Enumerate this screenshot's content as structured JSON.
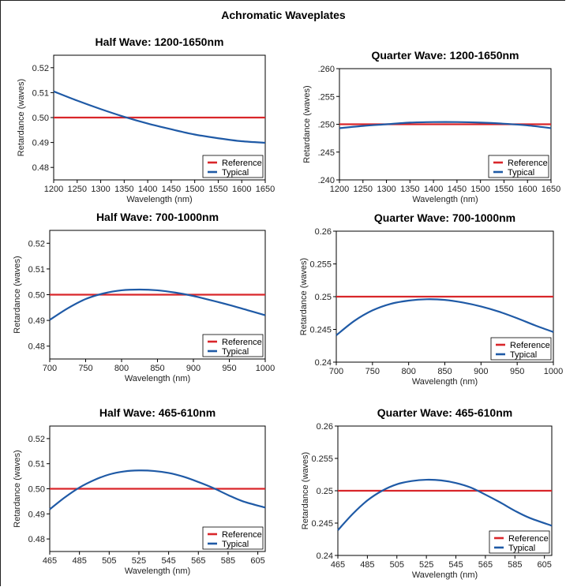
{
  "figure_title": "Achromatic Waveplates",
  "colors": {
    "reference": "#d9262a",
    "typical": "#1f5aa6",
    "frame": "#000000"
  },
  "chart_data": [
    {
      "id": "hw-ir",
      "type": "line",
      "title": "Half Wave: 1200-1650nm",
      "xlabel": "Wavelength (nm)",
      "ylabel": "Retardance (waves)",
      "xlim": [
        1200,
        1650
      ],
      "ylim": [
        0.475,
        0.525
      ],
      "xticks": [
        1200,
        1250,
        1300,
        1350,
        1400,
        1450,
        1500,
        1550,
        1600,
        1650
      ],
      "xtick_labels": [
        "1200",
        "1250",
        "1300",
        "1350",
        "1400",
        "1450",
        "1500",
        "1550",
        "1600",
        "1650"
      ],
      "yticks": [
        0.48,
        0.49,
        0.5,
        0.51,
        0.52
      ],
      "ytick_labels": [
        "0.48",
        "0.49",
        "0.50",
        "0.51",
        "0.52"
      ],
      "legend": "bottom-right",
      "series": [
        {
          "name": "Reference",
          "x": [
            1200,
            1650
          ],
          "y": [
            0.5,
            0.5
          ]
        },
        {
          "name": "Typical",
          "x": [
            1200,
            1250,
            1300,
            1350,
            1400,
            1450,
            1500,
            1550,
            1600,
            1650
          ],
          "y": [
            0.5105,
            0.5068,
            0.5034,
            0.5003,
            0.4976,
            0.4953,
            0.4932,
            0.4917,
            0.4905,
            0.4899
          ]
        }
      ]
    },
    {
      "id": "qw-ir",
      "type": "line",
      "title": "Quarter Wave: 1200-1650nm",
      "xlabel": "Wavelength (nm)",
      "ylabel": "Retardance (waves)",
      "xlim": [
        1200,
        1650
      ],
      "ylim": [
        0.24,
        0.26
      ],
      "xticks": [
        1200,
        1250,
        1300,
        1350,
        1400,
        1450,
        1500,
        1550,
        1600,
        1650
      ],
      "xtick_labels": [
        "1200",
        "1250",
        "1300",
        "1350",
        "1400",
        "1450",
        "1500",
        "1550",
        "1600",
        "1650"
      ],
      "yticks": [
        0.24,
        0.245,
        0.25,
        0.255,
        0.26
      ],
      "ytick_labels": [
        ".240",
        ".245",
        ".250",
        ".255",
        ".260"
      ],
      "legend": "bottom-right",
      "series": [
        {
          "name": "Reference",
          "x": [
            1200,
            1650
          ],
          "y": [
            0.25,
            0.25
          ]
        },
        {
          "name": "Typical",
          "x": [
            1200,
            1250,
            1300,
            1350,
            1400,
            1450,
            1500,
            1550,
            1600,
            1650
          ],
          "y": [
            0.2493,
            0.2497,
            0.25,
            0.2503,
            0.2504,
            0.2504,
            0.2503,
            0.2501,
            0.2498,
            0.2493
          ]
        }
      ]
    },
    {
      "id": "hw-nir",
      "type": "line",
      "title": "Half Wave: 700-1000nm",
      "xlabel": "Wavelength (nm)",
      "ylabel": "Retardance (waves)",
      "xlim": [
        700,
        1000
      ],
      "ylim": [
        0.475,
        0.525
      ],
      "xticks": [
        700,
        750,
        800,
        850,
        900,
        950,
        1000
      ],
      "xtick_labels": [
        "700",
        "750",
        "800",
        "850",
        "900",
        "950",
        "1000"
      ],
      "yticks": [
        0.48,
        0.49,
        0.5,
        0.51,
        0.52
      ],
      "ytick_labels": [
        "0.48",
        "0.49",
        "0.50",
        "0.51",
        "0.52"
      ],
      "legend": "bottom-right",
      "series": [
        {
          "name": "Reference",
          "x": [
            700,
            1000
          ],
          "y": [
            0.5,
            0.5
          ]
        },
        {
          "name": "Typical",
          "x": [
            700,
            725,
            750,
            775,
            800,
            825,
            850,
            875,
            900,
            925,
            950,
            975,
            1000
          ],
          "y": [
            0.4902,
            0.4947,
            0.4983,
            0.5005,
            0.5017,
            0.502,
            0.5017,
            0.5008,
            0.4995,
            0.4978,
            0.496,
            0.494,
            0.492
          ]
        }
      ]
    },
    {
      "id": "qw-nir",
      "type": "line",
      "title": "Quarter Wave: 700-1000nm",
      "xlabel": "Wavelength (nm)",
      "ylabel": "Retardance (waves)",
      "xlim": [
        700,
        1000
      ],
      "ylim": [
        0.24,
        0.26
      ],
      "xticks": [
        700,
        750,
        800,
        850,
        900,
        950,
        1000
      ],
      "xtick_labels": [
        "700",
        "750",
        "800",
        "850",
        "900",
        "950",
        "1000"
      ],
      "yticks": [
        0.24,
        0.245,
        0.25,
        0.255,
        0.26
      ],
      "ytick_labels": [
        "0.24",
        "0.245",
        "0.25",
        "0.255",
        "0.26"
      ],
      "legend": "bottom-right",
      "series": [
        {
          "name": "Reference",
          "x": [
            700,
            1000
          ],
          "y": [
            0.25,
            0.25
          ]
        },
        {
          "name": "Typical",
          "x": [
            700,
            725,
            750,
            775,
            800,
            825,
            850,
            875,
            900,
            925,
            950,
            975,
            1000
          ],
          "y": [
            0.2441,
            0.2463,
            0.2479,
            0.2489,
            0.2494,
            0.2496,
            0.2495,
            0.2491,
            0.2485,
            0.2477,
            0.2467,
            0.2456,
            0.2446
          ]
        }
      ]
    },
    {
      "id": "hw-vis",
      "type": "line",
      "title": "Half Wave: 465-610nm",
      "xlabel": "Wavelength (nm)",
      "ylabel": "Retardance (waves)",
      "xlim": [
        465,
        610
      ],
      "ylim": [
        0.475,
        0.525
      ],
      "xticks": [
        465,
        485,
        505,
        525,
        545,
        565,
        585,
        605
      ],
      "xtick_labels": [
        "465",
        "485",
        "505",
        "525",
        "545",
        "565",
        "585",
        "605"
      ],
      "yticks": [
        0.48,
        0.49,
        0.5,
        0.51,
        0.52
      ],
      "ytick_labels": [
        "0.48",
        "0.49",
        "0.50",
        "0.51",
        "0.52"
      ],
      "legend": "bottom-right",
      "series": [
        {
          "name": "Reference",
          "x": [
            465,
            610
          ],
          "y": [
            0.5,
            0.5
          ]
        },
        {
          "name": "Typical",
          "x": [
            465,
            475,
            485,
            495,
            505,
            515,
            525,
            535,
            545,
            555,
            565,
            575,
            585,
            595,
            610
          ],
          "y": [
            0.4918,
            0.4965,
            0.5005,
            0.5035,
            0.5057,
            0.5069,
            0.5073,
            0.5071,
            0.5063,
            0.5048,
            0.5027,
            0.5003,
            0.4975,
            0.495,
            0.4925
          ]
        }
      ]
    },
    {
      "id": "qw-vis",
      "type": "line",
      "title": "Quarter Wave: 465-610nm",
      "xlabel": "Wavelength (nm)",
      "ylabel": "Retardance (waves)",
      "xlim": [
        465,
        610
      ],
      "ylim": [
        0.24,
        0.26
      ],
      "xticks": [
        465,
        485,
        505,
        525,
        545,
        565,
        585,
        605
      ],
      "xtick_labels": [
        "465",
        "485",
        "505",
        "525",
        "545",
        "565",
        "585",
        "605"
      ],
      "yticks": [
        0.24,
        0.245,
        0.25,
        0.255,
        0.26
      ],
      "ytick_labels": [
        "0.24",
        "0.245",
        "0.25",
        "0.255",
        "0.26"
      ],
      "legend": "bottom-right",
      "series": [
        {
          "name": "Reference",
          "x": [
            465,
            610
          ],
          "y": [
            0.25,
            0.25
          ]
        },
        {
          "name": "Typical",
          "x": [
            465,
            475,
            485,
            495,
            505,
            515,
            525,
            535,
            545,
            555,
            565,
            575,
            585,
            595,
            610
          ],
          "y": [
            0.2439,
            0.2464,
            0.2485,
            0.25,
            0.251,
            0.2515,
            0.2517,
            0.2516,
            0.2512,
            0.2505,
            0.2494,
            0.2482,
            0.2469,
            0.2458,
            0.2446
          ]
        }
      ]
    }
  ],
  "legend_labels": {
    "reference": "Reference",
    "typical": "Typical"
  }
}
